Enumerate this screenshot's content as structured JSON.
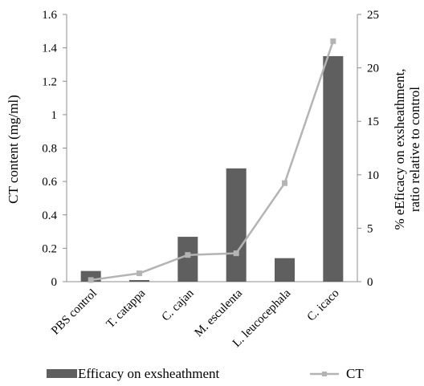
{
  "chart_data": {
    "type": "bar+line",
    "categories": [
      "PBS control",
      "T. catappa",
      "C. cajan",
      "M. esculenta",
      "L. leucocephala",
      "C. icaco"
    ],
    "series": [
      {
        "name": "Efficacy on exsheathment",
        "kind": "bar",
        "axis": "right",
        "values": [
          1.0,
          0.15,
          4.2,
          10.6,
          2.2,
          21.1
        ],
        "color": "#5f5f5f"
      },
      {
        "name": "CT",
        "kind": "line",
        "axis": "left",
        "values": [
          0.01,
          0.05,
          0.16,
          0.17,
          0.59,
          1.44
        ],
        "color": "#b4b4b4"
      }
    ],
    "ylabel": "CT content (mg/ml)",
    "ylim": [
      0,
      1.6
    ],
    "yticks": [
      "0",
      "0.2",
      "0.4",
      "0.6",
      "0.8",
      "1",
      "1.2",
      "1.4",
      "1.6"
    ],
    "y2label_line1": "% eEficacy on exsheathment,",
    "y2label_line2": "ratio relative to control",
    "y2lim": [
      0,
      25
    ],
    "y2ticks": [
      "0",
      "5",
      "10",
      "15",
      "20",
      "25"
    ],
    "grid": false,
    "legend_position": "bottom"
  }
}
